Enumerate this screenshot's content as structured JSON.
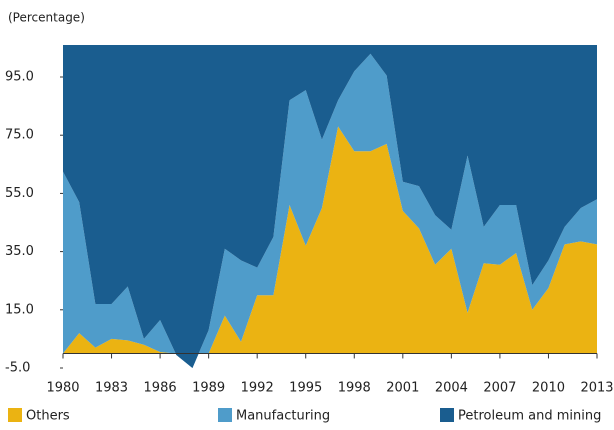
{
  "chart_data": {
    "type": "stacked_area",
    "y_axis_label": "(Percentage)",
    "x": [
      1980,
      1981,
      1982,
      1983,
      1984,
      1985,
      1986,
      1987,
      1988,
      1989,
      1990,
      1991,
      1992,
      1993,
      1994,
      1995,
      1996,
      1997,
      1998,
      1999,
      2000,
      2001,
      2002,
      2003,
      2004,
      2005,
      2006,
      2007,
      2008,
      2009,
      2010,
      2011,
      2012,
      2013
    ],
    "series": [
      {
        "name": "Others",
        "color": "#ebb312",
        "values": [
          0,
          7,
          2,
          5,
          4.5,
          3,
          0.5,
          0,
          0,
          0,
          13,
          4,
          20,
          20,
          51,
          37,
          50,
          78,
          69.5,
          69.5,
          72,
          49,
          43,
          30.5,
          36,
          14,
          31,
          30.5,
          34.5,
          15,
          22.5,
          37.5,
          38.5,
          37.5
        ]
      },
      {
        "name": "Manufacturing",
        "color": "#4f9cca",
        "values": [
          62.5,
          45,
          15,
          12,
          18.5,
          2,
          11,
          -0.5,
          -5,
          8,
          23,
          28,
          9.5,
          20,
          36,
          53.5,
          23.5,
          9,
          27.5,
          33.5,
          23.5,
          10,
          14.5,
          17,
          6.5,
          54,
          12.5,
          20.5,
          16.5,
          8.5,
          9.5,
          6,
          11.5,
          15.5
        ]
      },
      {
        "name": "Petroleum and mining",
        "color": "#1a5d8f"
      }
    ],
    "xlim": [
      1980,
      2013
    ],
    "xticks": [
      1980,
      1983,
      1986,
      1989,
      1992,
      1995,
      1998,
      2001,
      2004,
      2007,
      2010,
      2013
    ],
    "ylim": [
      -5,
      106
    ],
    "yticks": [
      {
        "value": -5,
        "label": "-5.0"
      },
      {
        "value": 15,
        "label": "15.0"
      },
      {
        "value": 35,
        "label": "35.0"
      },
      {
        "value": 55,
        "label": "55.0"
      },
      {
        "value": 75,
        "label": "75.0"
      },
      {
        "value": 95,
        "label": "95.0"
      }
    ],
    "legend": "bottom"
  }
}
